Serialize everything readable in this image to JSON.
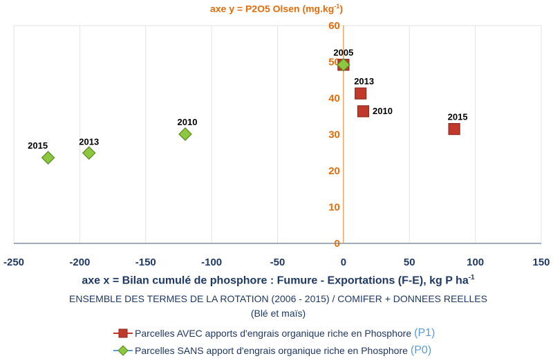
{
  "y_title_main": "axe y = P2O5 Olsen (mg.kg",
  "y_title_sup": "-1",
  "y_title_end": ")",
  "x_title_main": "axe x = Bilan cumulé de phosphore : Fumure - Exportations (F-E), kg P ha",
  "x_title_sup": "-1",
  "subtitle": "ENSEMBLE DES TERMES DE LA ROTATION (2006 - 2015) / COMIFER + DONNEES REELLES",
  "subtitle2": "(Blé et maïs)",
  "legend": [
    {
      "label": "Parcelles AVEC apports d'engrais organique riche en Phosphore",
      "code": "(P1)",
      "color": "#c0392b",
      "marker": "square"
    },
    {
      "label": "Parcelles SANS apport d'engrais organique riche en Phosphore",
      "code": "(P0)",
      "color": "#8dc63f",
      "marker": "diamond"
    }
  ],
  "chart_data": {
    "type": "scatter",
    "title": "",
    "xlabel": "axe x = Bilan cumulé de phosphore : Fumure - Exportations (F-E), kg P ha-1",
    "ylabel": "axe y = P2O5 Olsen (mg.kg-1)",
    "xlim": [
      -250,
      150
    ],
    "ylim": [
      0,
      60
    ],
    "x_ticks": [
      -250,
      -200,
      -150,
      -100,
      -50,
      0,
      50,
      100,
      150
    ],
    "y_ticks": [
      0,
      10,
      20,
      30,
      40,
      50,
      60
    ],
    "grid": true,
    "legend_position": "bottom",
    "series": [
      {
        "name": "Parcelles AVEC apports d'engrais organique riche en Phosphore (P1)",
        "color": "#c0392b",
        "marker": "square",
        "points": [
          {
            "x": 0,
            "y": 49.2,
            "label": "2005"
          },
          {
            "x": 13,
            "y": 41.3,
            "label": "2013"
          },
          {
            "x": 15,
            "y": 36.4,
            "label": "2010"
          },
          {
            "x": 84,
            "y": 31.5,
            "label": "2015"
          }
        ]
      },
      {
        "name": "Parcelles SANS apport d'engrais organique riche en Phosphore (P0)",
        "color": "#8dc63f",
        "marker": "diamond",
        "points": [
          {
            "x": 0,
            "y": 49.2,
            "label": ""
          },
          {
            "x": -120,
            "y": 30.1,
            "label": "2010"
          },
          {
            "x": -193,
            "y": 24.9,
            "label": "2013"
          },
          {
            "x": -224,
            "y": 23.6,
            "label": "2015"
          }
        ]
      }
    ]
  }
}
